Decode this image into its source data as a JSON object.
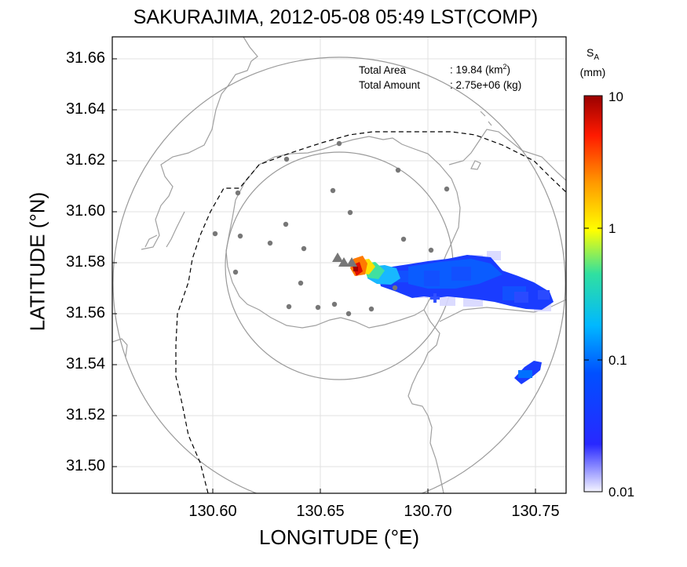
{
  "title": "SAKURAJIMA, 2012-05-08 05:49 LST(COMP)",
  "axes": {
    "xlabel": "LONGITUDE (°E)",
    "ylabel": "LATITUDE (°N)",
    "xticks": [
      "130.60",
      "130.65",
      "130.70",
      "130.75"
    ],
    "yticks": [
      "31.66",
      "31.64",
      "31.62",
      "31.60",
      "31.58",
      "31.56",
      "31.54",
      "31.52",
      "31.50"
    ],
    "xlim": [
      130.553,
      130.764
    ],
    "ylim": [
      31.487,
      31.666
    ],
    "grid": true
  },
  "info": {
    "area_label": "Total Area",
    "area_value": ": 19.84 (km",
    "area_sup": "2",
    "area_close": ")",
    "amount_label": "Total Amount",
    "amount_value": ": 2.75e+06 (kg)"
  },
  "colorbar": {
    "symbol": "S",
    "subscript": "A",
    "unit": "(mm)",
    "ticks": [
      "10",
      "1",
      "0.1",
      "0.01"
    ],
    "scale": "log",
    "range": [
      0.01,
      10
    ],
    "colors": [
      "#f0f0ff",
      "#2020ff",
      "#0060ff",
      "#00ccff",
      "#30e080",
      "#ffff00",
      "#ffaa00",
      "#ff2000",
      "#a00000"
    ]
  },
  "map": {
    "volcano": "Sakurajima",
    "station_color": "#777777",
    "coast_color": "#9a9a9a",
    "vent_symbol": "triangle"
  },
  "ash_plume": {
    "description": "deposit swath extending east-southeast from vent",
    "max_value_mm": 10
  }
}
